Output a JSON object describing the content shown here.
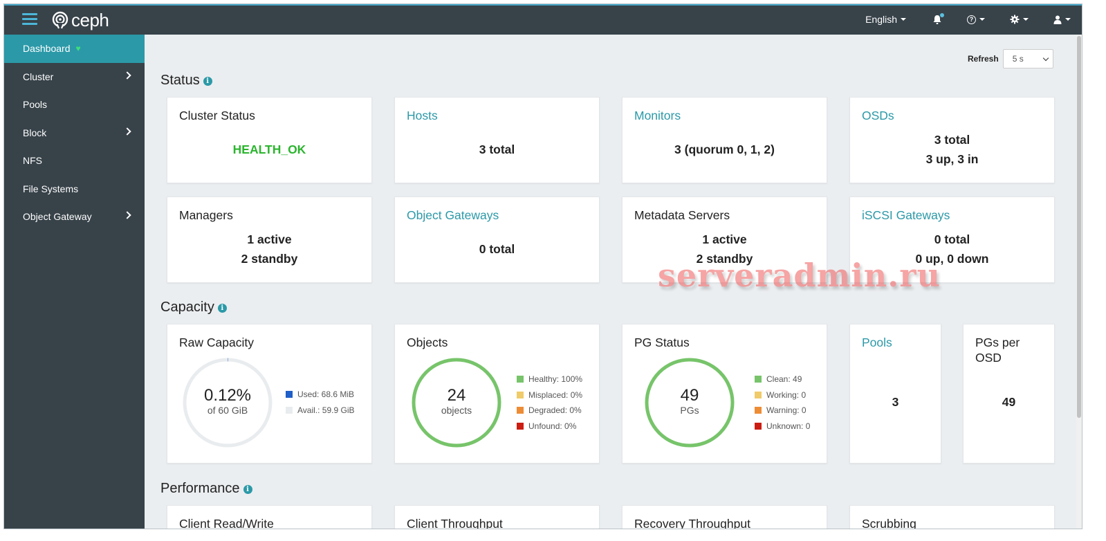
{
  "brand": {
    "name": "ceph",
    "accent": "#2b99a8",
    "nav_bg": "#374249"
  },
  "navbar": {
    "language": "English",
    "icons": [
      "menu-icon",
      "bell-icon",
      "help-icon",
      "gear-icon",
      "user-icon"
    ]
  },
  "sidebar": {
    "items": [
      {
        "label": "Dashboard",
        "active": true,
        "has_children": false
      },
      {
        "label": "Cluster",
        "active": false,
        "has_children": true
      },
      {
        "label": "Pools",
        "active": false,
        "has_children": false
      },
      {
        "label": "Block",
        "active": false,
        "has_children": true
      },
      {
        "label": "NFS",
        "active": false,
        "has_children": false
      },
      {
        "label": "File Systems",
        "active": false,
        "has_children": false
      },
      {
        "label": "Object Gateway",
        "active": false,
        "has_children": true
      }
    ]
  },
  "refresh": {
    "label": "Refresh",
    "value": "5 s"
  },
  "sections": {
    "status": "Status",
    "capacity": "Capacity",
    "performance": "Performance"
  },
  "status_cards": {
    "cluster_status": {
      "title": "Cluster Status",
      "value": "HEALTH_OK"
    },
    "hosts": {
      "title": "Hosts",
      "value": "3 total"
    },
    "monitors": {
      "title": "Monitors",
      "value": "3 (quorum 0, 1, 2)"
    },
    "osds": {
      "title": "OSDs",
      "line1": "3 total",
      "line2": "3 up, 3 in"
    },
    "managers": {
      "title": "Managers",
      "line1": "1 active",
      "line2": "2 standby"
    },
    "object_gateways": {
      "title": "Object Gateways",
      "value": "0 total"
    },
    "metadata_servers": {
      "title": "Metadata Servers",
      "line1": "1 active",
      "line2": "2 standby"
    },
    "iscsi_gateways": {
      "title": "iSCSI Gateways",
      "line1": "0 total",
      "line2": "0 up, 0 down"
    }
  },
  "capacity_cards": {
    "raw_capacity": {
      "title": "Raw Capacity",
      "main": "0.12%",
      "sub": "of 60 GiB",
      "used_fraction": 0.0012,
      "legend": [
        {
          "label": "Used: 68.6 MiB",
          "color": "#1f5fc7"
        },
        {
          "label": "Avail.: 59.9 GiB",
          "color": "#e9ecee"
        }
      ]
    },
    "objects": {
      "title": "Objects",
      "main": "24",
      "sub": "objects",
      "legend": [
        {
          "label": "Healthy: 100%",
          "color": "#77c46a"
        },
        {
          "label": "Misplaced: 0%",
          "color": "#f0cb6a"
        },
        {
          "label": "Degraded: 0%",
          "color": "#ee8c35"
        },
        {
          "label": "Unfound: 0%",
          "color": "#cc1d12"
        }
      ]
    },
    "pg_status": {
      "title": "PG Status",
      "main": "49",
      "sub": "PGs",
      "legend": [
        {
          "label": "Clean: 49",
          "color": "#77c46a"
        },
        {
          "label": "Working: 0",
          "color": "#f0cb6a"
        },
        {
          "label": "Warning: 0",
          "color": "#ee8c35"
        },
        {
          "label": "Unknown: 0",
          "color": "#cc1d12"
        }
      ]
    },
    "pools": {
      "title": "Pools",
      "value": "3"
    },
    "pgs_per_osd": {
      "title_line1": "PGs per",
      "title_line2": "OSD",
      "value": "49"
    }
  },
  "performance_cards": [
    "Client Read/Write",
    "Client Throughput",
    "Recovery Throughput",
    "Scrubbing"
  ],
  "watermark": "serveradmin.ru"
}
